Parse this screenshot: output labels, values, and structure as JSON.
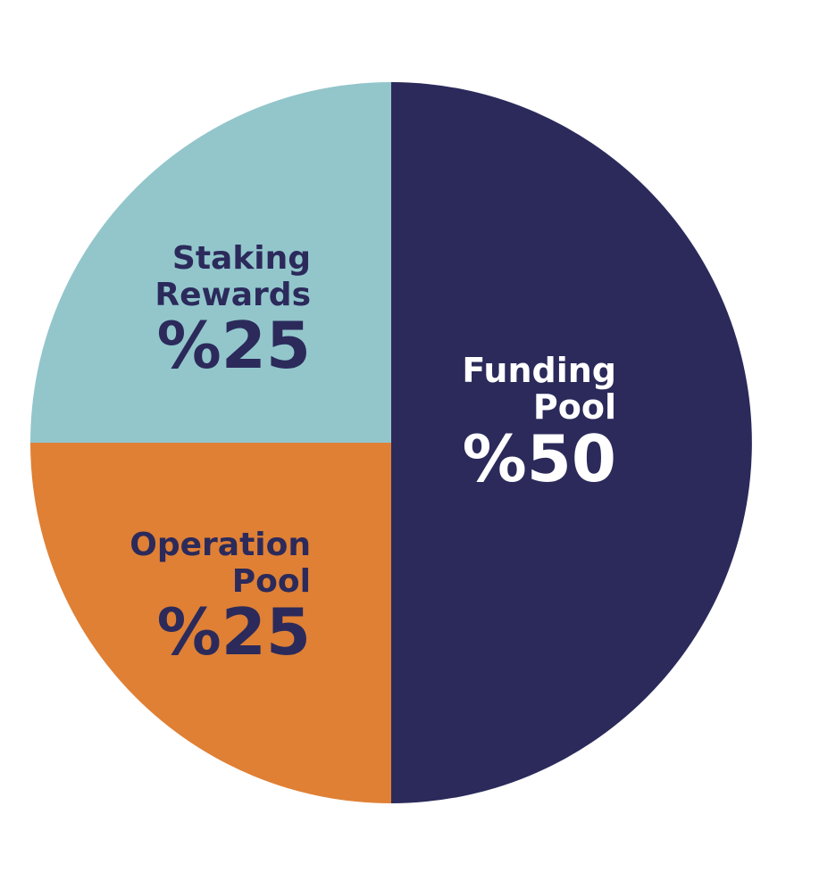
{
  "chart_data": {
    "type": "pie",
    "slices": [
      {
        "label_lines": [
          "Funding",
          "Pool"
        ],
        "value": 50,
        "value_text": "%50",
        "color": "#2b2a5b",
        "text_color": "#ffffff"
      },
      {
        "label_lines": [
          "Operation",
          "Pool"
        ],
        "value": 25,
        "value_text": "%25",
        "color": "#df8035",
        "text_color": "#2b2a5b"
      },
      {
        "label_lines": [
          "Staking",
          "Rewards"
        ],
        "value": 25,
        "value_text": "%25",
        "color": "#92c6cb",
        "text_color": "#2b2a5b"
      }
    ],
    "start_angle_deg": 0,
    "direction": "clockwise",
    "legend": "none"
  }
}
